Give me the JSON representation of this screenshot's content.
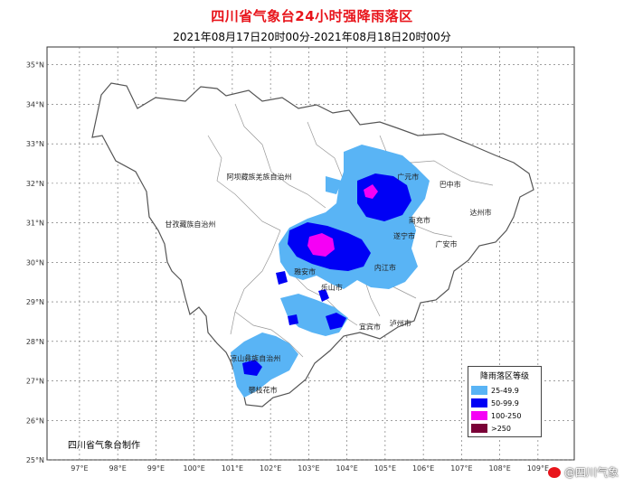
{
  "title": "四川省气象台24小时强降雨落区",
  "subtitle": "2021年08月17日20时00分-2021年08月18日20时00分",
  "maker": "四川省气象台制作",
  "watermark": "@四川气象",
  "axes": {
    "lat_labels": [
      "35°N",
      "34°N",
      "33°N",
      "32°N",
      "31°N",
      "30°N",
      "29°N",
      "28°N",
      "27°N",
      "26°N",
      "25°N"
    ],
    "lon_labels": [
      "97°E",
      "98°E",
      "99°E",
      "100°E",
      "101°E",
      "102°E",
      "103°E",
      "104°E",
      "105°E",
      "106°E",
      "107°E",
      "108°E",
      "109°E"
    ],
    "grid": true
  },
  "regions": [
    {
      "name": "阿坝藏族羌族自治州",
      "lon": 101.7,
      "lat": 32.1
    },
    {
      "name": "甘孜藏族自治州",
      "lon": 99.9,
      "lat": 30.9
    },
    {
      "name": "凉山彝族自治州",
      "lon": 101.6,
      "lat": 27.5
    },
    {
      "name": "广元市",
      "lon": 105.6,
      "lat": 32.1
    },
    {
      "name": "巴中市",
      "lon": 106.7,
      "lat": 31.9
    },
    {
      "name": "达州市",
      "lon": 107.5,
      "lat": 31.2
    },
    {
      "name": "南充市",
      "lon": 105.9,
      "lat": 31.0
    },
    {
      "name": "遂宁市",
      "lon": 105.5,
      "lat": 30.6
    },
    {
      "name": "广安市",
      "lon": 106.6,
      "lat": 30.4
    },
    {
      "name": "内江市",
      "lon": 105.0,
      "lat": 29.8
    },
    {
      "name": "雅安市",
      "lon": 102.9,
      "lat": 29.7
    },
    {
      "name": "乐山市",
      "lon": 103.6,
      "lat": 29.3
    },
    {
      "name": "宜宾市",
      "lon": 104.6,
      "lat": 28.3
    },
    {
      "name": "泸州市",
      "lon": 105.4,
      "lat": 28.4
    },
    {
      "name": "攀枝花市",
      "lon": 101.8,
      "lat": 26.7
    }
  ],
  "legend": {
    "title": "降雨落区等级",
    "items": [
      {
        "label": "25-49.9",
        "color": "#59b4f5"
      },
      {
        "label": "50-99.9",
        "color": "#0000f5"
      },
      {
        "label": "100-250",
        "color": "#f500f5"
      },
      {
        "label": ">250",
        "color": "#7a0037"
      }
    ]
  }
}
